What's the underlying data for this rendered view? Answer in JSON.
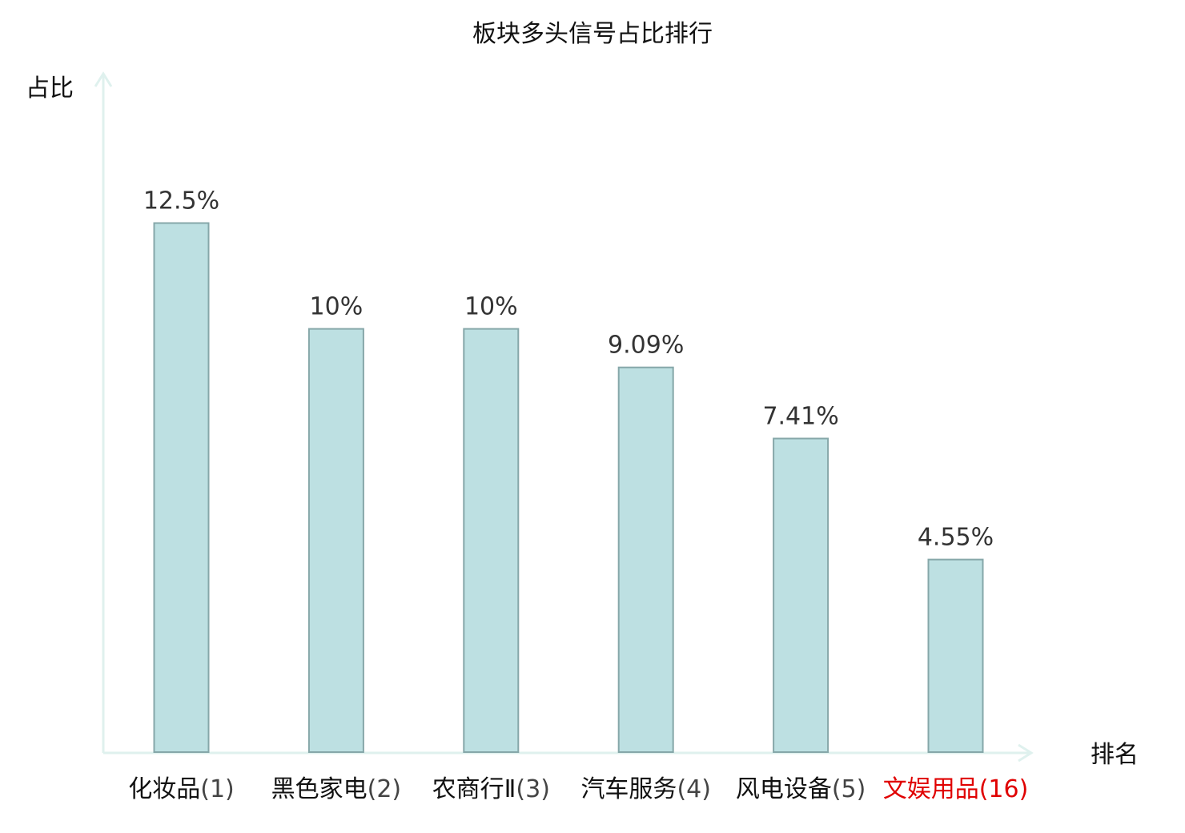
{
  "chart_data": {
    "type": "bar",
    "title": "板块多头信号占比排行",
    "ylabel": "占比",
    "xlabel": "排名",
    "ylim": [
      0,
      15.5
    ],
    "grid": false,
    "legend": "none",
    "categories": [
      {
        "name": "化妆品",
        "rank": "(1)",
        "highlight": false
      },
      {
        "name": "黑色家电",
        "rank": "(2)",
        "highlight": false
      },
      {
        "name": "农商行Ⅱ",
        "rank": "(3)",
        "highlight": false
      },
      {
        "name": "汽车服务",
        "rank": "(4)",
        "highlight": false
      },
      {
        "name": "风电设备",
        "rank": "(5)",
        "highlight": false
      },
      {
        "name": "文娱用品",
        "rank": "(16)",
        "highlight": true
      }
    ],
    "values": [
      12.5,
      10,
      10,
      9.09,
      7.41,
      4.55
    ],
    "value_labels": [
      "12.5%",
      "10%",
      "10%",
      "9.09%",
      "7.41%",
      "4.55%"
    ]
  },
  "colors": {
    "bar_fill": "#bde0e2",
    "bar_stroke": "#86a7a9",
    "axis": "#dff1ee",
    "highlight": "#e00000",
    "text": "#111111",
    "rank_text": "#444444"
  }
}
